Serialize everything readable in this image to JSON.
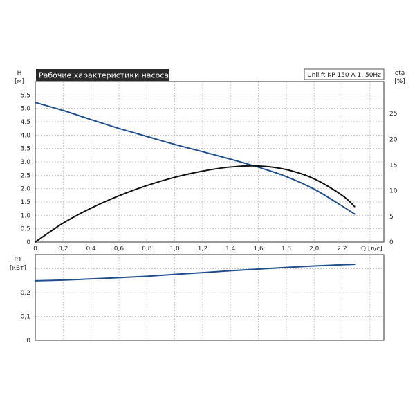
{
  "chart_data": [
    {
      "type": "line",
      "title": "Рабочие характеристики насоса",
      "legend_text": "Unilift KP 150 A 1, 50Hz",
      "title_bg_color": "#2b2b2b",
      "title_text_color": "#ffffff",
      "xlabel": "Q [л/с]",
      "ylabel_lines": [
        "H",
        "[м]"
      ],
      "y2label_lines": [
        "eta",
        "[%]"
      ],
      "xlim": [
        0,
        2.5
      ],
      "ylim": [
        0,
        6.0
      ],
      "y2lim": [
        0,
        31.2
      ],
      "xticks": [
        "0",
        "0,2",
        "0,4",
        "0,6",
        "0,8",
        "1,0",
        "1,2",
        "1,4",
        "1,6",
        "1,8",
        "2,0",
        "2,2"
      ],
      "xtick_values": [
        0,
        0.2,
        0.4,
        0.6,
        0.8,
        1.0,
        1.2,
        1.4,
        1.6,
        1.8,
        2.0,
        2.2
      ],
      "yticks": [
        "0",
        "0.5",
        "1.0",
        "1.5",
        "2.0",
        "2.5",
        "3.0",
        "3.5",
        "4.0",
        "4.5",
        "5.0",
        "5.5"
      ],
      "ytick_values": [
        0,
        0.5,
        1.0,
        1.5,
        2.0,
        2.5,
        3.0,
        3.5,
        4.0,
        4.5,
        5.0,
        5.5
      ],
      "y2ticks": [
        "0",
        "5",
        "10",
        "15",
        "20",
        "25"
      ],
      "y2tick_values": [
        0,
        5,
        10,
        15,
        20,
        25
      ],
      "grid": true,
      "series": [
        {
          "axis": "left",
          "color": "#1f4e8c",
          "x": [
            0,
            0.2,
            0.4,
            0.6,
            0.8,
            1.0,
            1.2,
            1.4,
            1.6,
            1.8,
            2.0,
            2.2,
            2.29
          ],
          "values": [
            5.22,
            4.92,
            4.58,
            4.25,
            3.95,
            3.65,
            3.38,
            3.1,
            2.8,
            2.45,
            1.98,
            1.35,
            1.05
          ]
        },
        {
          "axis": "right",
          "color": "#111111",
          "x": [
            0,
            0.2,
            0.4,
            0.6,
            0.8,
            1.0,
            1.2,
            1.4,
            1.6,
            1.8,
            2.0,
            2.2,
            2.29
          ],
          "values": [
            0,
            3.7,
            6.6,
            9.0,
            11.0,
            12.6,
            13.8,
            14.6,
            14.8,
            14.1,
            12.3,
            9.1,
            6.9
          ]
        }
      ]
    },
    {
      "type": "line",
      "ylabel_lines": [
        "P1",
        "[кВт]"
      ],
      "xlim": [
        0,
        2.5
      ],
      "ylim": [
        0,
        0.36
      ],
      "xtick_values": [
        0,
        0.2,
        0.4,
        0.6,
        0.8,
        1.0,
        1.2,
        1.4,
        1.6,
        1.8,
        2.0,
        2.2
      ],
      "yticks": [
        "0",
        "0,1",
        "0,2"
      ],
      "ytick_values": [
        0,
        0.1,
        0.2
      ],
      "grid": true,
      "series": [
        {
          "color": "#1f4e8c",
          "x": [
            0,
            0.2,
            0.4,
            0.6,
            0.8,
            1.0,
            1.2,
            1.4,
            1.6,
            1.8,
            2.0,
            2.2,
            2.29
          ],
          "values": [
            0.25,
            0.253,
            0.258,
            0.263,
            0.269,
            0.277,
            0.284,
            0.292,
            0.299,
            0.306,
            0.312,
            0.317,
            0.319
          ]
        }
      ]
    }
  ]
}
